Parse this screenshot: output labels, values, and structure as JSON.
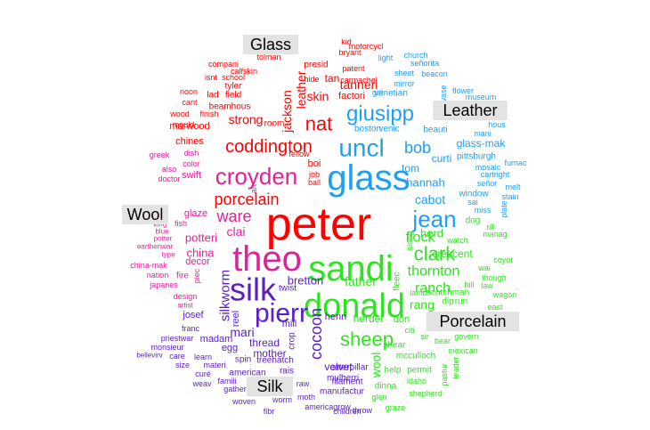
{
  "chart_data": {
    "type": "wordcloud",
    "title": "",
    "classes": [
      {
        "name": "Glass",
        "color": "#ff0000"
      },
      {
        "name": "Leather",
        "color": "#1e9ff2"
      },
      {
        "name": "Porcelain",
        "color": "#2ee31f"
      },
      {
        "name": "Silk",
        "color": "#5a1dc8"
      },
      {
        "name": "Wool",
        "color": "#e0219a"
      }
    ],
    "words": [
      {
        "text": "peter",
        "class": "Glass",
        "size": 52
      },
      {
        "text": "glass",
        "class": "Leather",
        "size": 40
      },
      {
        "text": "theo",
        "class": "Wool",
        "size": 40
      },
      {
        "text": "sandi",
        "class": "Porcelain",
        "size": 40
      },
      {
        "text": "donald",
        "class": "Porcelain",
        "size": 38
      },
      {
        "text": "silk",
        "class": "Silk",
        "size": 36
      },
      {
        "text": "pierr",
        "class": "Silk",
        "size": 30
      },
      {
        "text": "croyden",
        "class": "Wool",
        "size": 26
      },
      {
        "text": "uncl",
        "class": "Leather",
        "size": 28
      },
      {
        "text": "jean",
        "class": "Leather",
        "size": 26
      },
      {
        "text": "giusipp",
        "class": "Leather",
        "size": 24
      },
      {
        "text": "coddington",
        "class": "Glass",
        "size": 20
      },
      {
        "text": "nat",
        "class": "Glass",
        "size": 22
      },
      {
        "text": "sheep",
        "class": "Porcelain",
        "size": 22
      },
      {
        "text": "clark",
        "class": "Porcelain",
        "size": 22
      },
      {
        "text": "bob",
        "class": "Leather",
        "size": 18
      },
      {
        "text": "porcelain",
        "class": "Glass",
        "size": 18
      },
      {
        "text": "ware",
        "class": "Wool",
        "size": 18
      },
      {
        "text": "thornton",
        "class": "Porcelain",
        "size": 16
      },
      {
        "text": "cocoon",
        "class": "Silk",
        "size": 18
      },
      {
        "text": "ranch",
        "class": "Porcelain",
        "size": 16
      },
      {
        "text": "flock",
        "class": "Porcelain",
        "size": 16
      },
      {
        "text": "tanneri",
        "class": "Glass",
        "size": 14
      },
      {
        "text": "leather",
        "class": "Glass",
        "size": 14
      },
      {
        "text": "jackson",
        "class": "Glass",
        "size": 14
      },
      {
        "text": "strong",
        "class": "Glass",
        "size": 14
      },
      {
        "text": "skin",
        "class": "Glass",
        "size": 14
      },
      {
        "text": "hannah",
        "class": "Leather",
        "size": 13
      },
      {
        "text": "cabot",
        "class": "Leather",
        "size": 14
      },
      {
        "text": "silkworm",
        "class": "Silk",
        "size": 15
      },
      {
        "text": "father",
        "class": "Porcelain",
        "size": 14
      },
      {
        "text": "rang",
        "class": "Porcelain",
        "size": 14
      },
      {
        "text": "mari",
        "class": "Silk",
        "size": 14
      },
      {
        "text": "wool",
        "class": "Porcelain",
        "size": 14
      },
      {
        "text": "clai",
        "class": "Wool",
        "size": 14
      },
      {
        "text": "china",
        "class": "Wool",
        "size": 13
      },
      {
        "text": "potteri",
        "class": "Wool",
        "size": 13
      },
      {
        "text": "bretton",
        "class": "Silk",
        "size": 13
      },
      {
        "text": "herd",
        "class": "Porcelain",
        "size": 13
      },
      {
        "text": "crescent",
        "class": "Porcelain",
        "size": 12
      },
      {
        "text": "velvet",
        "class": "Silk",
        "size": 12
      },
      {
        "text": "mother",
        "class": "Silk",
        "size": 12
      },
      {
        "text": "thread",
        "class": "Silk",
        "size": 12
      },
      {
        "text": "herder",
        "class": "Porcelain",
        "size": 12
      },
      {
        "text": "tom",
        "class": "Leather",
        "size": 12
      },
      {
        "text": "curti",
        "class": "Leather",
        "size": 12
      },
      {
        "text": "glass-mak",
        "class": "Leather",
        "size": 12
      },
      {
        "text": "venetian",
        "class": "Leather",
        "size": 10
      },
      {
        "text": "venic",
        "class": "Leather",
        "size": 10
      },
      {
        "text": "boston",
        "class": "Leather",
        "size": 10
      },
      {
        "text": "beauti",
        "class": "Leather",
        "size": 10
      },
      {
        "text": "pittsburgh",
        "class": "Leather",
        "size": 10
      },
      {
        "text": "window",
        "class": "Leather",
        "size": 10
      },
      {
        "text": "mosaic",
        "class": "Leather",
        "size": 9
      },
      {
        "text": "girl",
        "class": "Leather",
        "size": 9
      },
      {
        "text": "sheet",
        "class": "Leather",
        "size": 9
      },
      {
        "text": "mirror",
        "class": "Leather",
        "size": 9
      },
      {
        "text": "church",
        "class": "Leather",
        "size": 9
      },
      {
        "text": "señorita",
        "class": "Leather",
        "size": 9
      },
      {
        "text": "light",
        "class": "Leather",
        "size": 9
      },
      {
        "text": "beacon",
        "class": "Leather",
        "size": 9
      },
      {
        "text": "vase",
        "class": "Leather",
        "size": 9
      },
      {
        "text": "flower",
        "class": "Leather",
        "size": 9
      },
      {
        "text": "museum",
        "class": "Leather",
        "size": 9
      },
      {
        "text": "hous",
        "class": "Leather",
        "size": 9
      },
      {
        "text": "mani",
        "class": "Leather",
        "size": 9
      },
      {
        "text": "cartright",
        "class": "Leather",
        "size": 9
      },
      {
        "text": "furnac",
        "class": "Leather",
        "size": 9
      },
      {
        "text": "señor",
        "class": "Leather",
        "size": 9
      },
      {
        "text": "melt",
        "class": "Leather",
        "size": 9
      },
      {
        "text": "stain",
        "class": "Leather",
        "size": 9
      },
      {
        "text": "plate",
        "class": "Leather",
        "size": 9
      },
      {
        "text": "sai",
        "class": "Leather",
        "size": 9
      },
      {
        "text": "miss",
        "class": "Leather",
        "size": 9
      },
      {
        "text": "dog",
        "class": "Porcelain",
        "size": 10
      },
      {
        "text": "manag",
        "class": "Porcelain",
        "size": 9
      },
      {
        "text": "rifl",
        "class": "Porcelain",
        "size": 9
      },
      {
        "text": "along",
        "class": "Porcelain",
        "size": 9
      },
      {
        "text": "watch",
        "class": "Porcelain",
        "size": 9
      },
      {
        "text": "coyot",
        "class": "Porcelain",
        "size": 9
      },
      {
        "text": "wai",
        "class": "Porcelain",
        "size": 9
      },
      {
        "text": "though",
        "class": "Porcelain",
        "size": 9
      },
      {
        "text": "hill",
        "class": "Porcelain",
        "size": 9
      },
      {
        "text": "law",
        "class": "Porcelain",
        "size": 9
      },
      {
        "text": "lamb",
        "class": "Porcelain",
        "size": 9
      },
      {
        "text": "scotchman",
        "class": "Porcelain",
        "size": 10
      },
      {
        "text": "wagon",
        "class": "Porcelain",
        "size": 9
      },
      {
        "text": "fleec",
        "class": "Porcelain",
        "size": 10
      },
      {
        "text": "dip",
        "class": "Porcelain",
        "size": 10
      },
      {
        "text": "run",
        "class": "Porcelain",
        "size": 10
      },
      {
        "text": "east",
        "class": "Porcelain",
        "size": 9
      },
      {
        "text": "don",
        "class": "Porcelain",
        "size": 11
      },
      {
        "text": "citi",
        "class": "Porcelain",
        "size": 9
      },
      {
        "text": "sir",
        "class": "Porcelain",
        "size": 9
      },
      {
        "text": "bear",
        "class": "Porcelain",
        "size": 9
      },
      {
        "text": "govern",
        "class": "Porcelain",
        "size": 9
      },
      {
        "text": "shear",
        "class": "Porcelain",
        "size": 10
      },
      {
        "text": "mexican",
        "class": "Porcelain",
        "size": 9
      },
      {
        "text": "mcculloch",
        "class": "Porcelain",
        "size": 10
      },
      {
        "text": "pastur",
        "class": "Porcelain",
        "size": 9
      },
      {
        "text": "leader",
        "class": "Porcelain",
        "size": 9
      },
      {
        "text": "help",
        "class": "Porcelain",
        "size": 10
      },
      {
        "text": "permit",
        "class": "Porcelain",
        "size": 10
      },
      {
        "text": "idaho",
        "class": "Porcelain",
        "size": 9
      },
      {
        "text": "dinna",
        "class": "Porcelain",
        "size": 10
      },
      {
        "text": "shepherd",
        "class": "Porcelain",
        "size": 9
      },
      {
        "text": "glen",
        "class": "Porcelain",
        "size": 9
      },
      {
        "text": "graze",
        "class": "Porcelain",
        "size": 9
      },
      {
        "text": "henri",
        "class": "Silk",
        "size": 11
      },
      {
        "text": "mill",
        "class": "Silk",
        "size": 11
      },
      {
        "text": "reel",
        "class": "Silk",
        "size": 11
      },
      {
        "text": "twist",
        "class": "Silk",
        "size": 10
      },
      {
        "text": "crop",
        "class": "Silk",
        "size": 10
      },
      {
        "text": "egg",
        "class": "Silk",
        "size": 11
      },
      {
        "text": "madam",
        "class": "Silk",
        "size": 11
      },
      {
        "text": "spin",
        "class": "Silk",
        "size": 10
      },
      {
        "text": "treehatch",
        "class": "Silk",
        "size": 10
      },
      {
        "text": "mulberri",
        "class": "Silk",
        "size": 10
      },
      {
        "text": "american",
        "class": "Silk",
        "size": 10
      },
      {
        "text": "rais",
        "class": "Silk",
        "size": 10
      },
      {
        "text": "caterpillar",
        "class": "Silk",
        "size": 10
      },
      {
        "text": "filament",
        "class": "Silk",
        "size": 10
      },
      {
        "text": "manufactur",
        "class": "Silk",
        "size": 10
      },
      {
        "text": "raw",
        "class": "Silk",
        "size": 9
      },
      {
        "text": "moth",
        "class": "Silk",
        "size": 9
      },
      {
        "text": "worm",
        "class": "Silk",
        "size": 9
      },
      {
        "text": "americagrow",
        "class": "Silk",
        "size": 9
      },
      {
        "text": "children",
        "class": "Silk",
        "size": 9
      },
      {
        "text": "throw",
        "class": "Silk",
        "size": 9
      },
      {
        "text": "woven",
        "class": "Silk",
        "size": 9
      },
      {
        "text": "fibr",
        "class": "Silk",
        "size": 9
      },
      {
        "text": "gather",
        "class": "Silk",
        "size": 9
      },
      {
        "text": "curé",
        "class": "Silk",
        "size": 9
      },
      {
        "text": "weav",
        "class": "Silk",
        "size": 9
      },
      {
        "text": "materi",
        "class": "Silk",
        "size": 9
      },
      {
        "text": "famili",
        "class": "Silk",
        "size": 9
      },
      {
        "text": "learn",
        "class": "Silk",
        "size": 9
      },
      {
        "text": "care",
        "class": "Silk",
        "size": 9
      },
      {
        "text": "size",
        "class": "Silk",
        "size": 9
      },
      {
        "text": "bellevirv",
        "class": "Silk",
        "size": 8
      },
      {
        "text": "monsieur",
        "class": "Silk",
        "size": 9
      },
      {
        "text": "priestwar",
        "class": "Silk",
        "size": 9
      },
      {
        "text": "franc",
        "class": "Silk",
        "size": 9
      },
      {
        "text": "josef",
        "class": "Silk",
        "size": 11
      },
      {
        "text": "fellow",
        "class": "Glass",
        "size": 9
      },
      {
        "text": "boi",
        "class": "Glass",
        "size": 11
      },
      {
        "text": "job",
        "class": "Glass",
        "size": 9
      },
      {
        "text": "ball",
        "class": "Glass",
        "size": 9
      },
      {
        "text": "art",
        "class": "Wool",
        "size": 9
      },
      {
        "text": "room",
        "class": "Glass",
        "size": 10
      },
      {
        "text": "beamhous",
        "class": "Glass",
        "size": 10
      },
      {
        "text": "lad",
        "class": "Glass",
        "size": 10
      },
      {
        "text": "field",
        "class": "Glass",
        "size": 10
      },
      {
        "text": "noon",
        "class": "Glass",
        "size": 9
      },
      {
        "text": "cant",
        "class": "Glass",
        "size": 9
      },
      {
        "text": "finish",
        "class": "Glass",
        "size": 9
      },
      {
        "text": "wood",
        "class": "Glass",
        "size": 9
      },
      {
        "text": "marwood",
        "class": "Glass",
        "size": 11
      },
      {
        "text": "mould",
        "class": "Glass",
        "size": 9
      },
      {
        "text": "chines",
        "class": "Glass",
        "size": 11
      },
      {
        "text": "tyler",
        "class": "Glass",
        "size": 10
      },
      {
        "text": "school",
        "class": "Glass",
        "size": 9
      },
      {
        "text": "calfskin",
        "class": "Glass",
        "size": 9
      },
      {
        "text": "isnt",
        "class": "Glass",
        "size": 9
      },
      {
        "text": "compani",
        "class": "Glass",
        "size": 9
      },
      {
        "text": "tolman",
        "class": "Glass",
        "size": 9
      },
      {
        "text": "hide",
        "class": "Glass",
        "size": 9
      },
      {
        "text": "tan",
        "class": "Glass",
        "size": 12
      },
      {
        "text": "factori",
        "class": "Glass",
        "size": 11
      },
      {
        "text": "presid",
        "class": "Glass",
        "size": 10
      },
      {
        "text": "patent",
        "class": "Glass",
        "size": 9
      },
      {
        "text": "bryant",
        "class": "Glass",
        "size": 9
      },
      {
        "text": "carmachel",
        "class": "Glass",
        "size": 9
      },
      {
        "text": "motorcycl",
        "class": "Glass",
        "size": 9
      },
      {
        "text": "kid",
        "class": "Glass",
        "size": 9
      },
      {
        "text": "greek",
        "class": "Wool",
        "size": 9
      },
      {
        "text": "dish",
        "class": "Wool",
        "size": 9
      },
      {
        "text": "color",
        "class": "Wool",
        "size": 9
      },
      {
        "text": "also",
        "class": "Wool",
        "size": 9
      },
      {
        "text": "doctor",
        "class": "Wool",
        "size": 9
      },
      {
        "text": "swift",
        "class": "Wool",
        "size": 11
      },
      {
        "text": "glaze",
        "class": "Wool",
        "size": 11
      },
      {
        "text": "king",
        "class": "Wool",
        "size": 8
      },
      {
        "text": "fish",
        "class": "Wool",
        "size": 9
      },
      {
        "text": "blue",
        "class": "Wool",
        "size": 8
      },
      {
        "text": "potter",
        "class": "Wool",
        "size": 8
      },
      {
        "text": "earthenwar",
        "class": "Wool",
        "size": 8
      },
      {
        "text": "type",
        "class": "Wool",
        "size": 8
      },
      {
        "text": "decor",
        "class": "Wool",
        "size": 11
      },
      {
        "text": "china-mak",
        "class": "Wool",
        "size": 9
      },
      {
        "text": "nation",
        "class": "Wool",
        "size": 9
      },
      {
        "text": "fire",
        "class": "Wool",
        "size": 10
      },
      {
        "text": "piec",
        "class": "Wool",
        "size": 9
      },
      {
        "text": "japanes",
        "class": "Wool",
        "size": 9
      },
      {
        "text": "design",
        "class": "Wool",
        "size": 9
      },
      {
        "text": "artist",
        "class": "Wool",
        "size": 8
      }
    ]
  }
}
